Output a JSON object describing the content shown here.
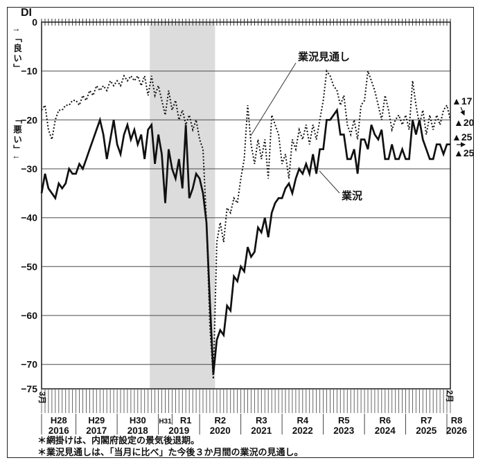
{
  "figure": {
    "di_label": "DI",
    "axis_good": "↑「良い」",
    "axis_bad": "「悪い」↓",
    "first_month_label": "3月",
    "last_month_label": "2月",
    "footnote_1": "＊網掛けは、内閣府設定の景気後退期。",
    "footnote_2": "＊業況見通しは、「当月に比べ」た今後３か月間の業況の見通し。"
  },
  "chart_data": {
    "type": "line",
    "title": "",
    "xlabel": "",
    "ylabel": "DI",
    "ylim": [
      -75,
      0
    ],
    "yticks": [
      0,
      -10,
      -20,
      -30,
      -40,
      -50,
      -60,
      -70,
      -75
    ],
    "grid": true,
    "x_months": {
      "start": "2016-03",
      "end": "2026-02",
      "count": 120
    },
    "years": [
      {
        "era": "H28",
        "year": "2016"
      },
      {
        "era": "H29",
        "year": "2017"
      },
      {
        "era": "H30",
        "year": "2018"
      },
      {
        "era_pre": "H31",
        "era": "R1",
        "year": "2019"
      },
      {
        "era": "R2",
        "year": "2020"
      },
      {
        "era": "R3",
        "year": "2021"
      },
      {
        "era": "R4",
        "year": "2022"
      },
      {
        "era": "R5",
        "year": "2023"
      },
      {
        "era": "R6",
        "year": "2024"
      },
      {
        "era": "R7",
        "year": "2025"
      },
      {
        "era": "R8",
        "year": "2026"
      }
    ],
    "era_split_month": "2019-05",
    "recession_shading": {
      "from": "2018-11",
      "to": "2020-05",
      "color": "#dcdcdc",
      "note": "内閣府設定の景気後退期"
    },
    "series": [
      {
        "name": "業況",
        "line": "solid",
        "color": "#101010",
        "values": [
          -35,
          -31,
          -34,
          -35,
          -36,
          -33,
          -34,
          -33,
          -30,
          -31,
          -31,
          -29,
          -30,
          -28,
          -26,
          -24,
          -22,
          -20,
          -23,
          -28,
          -24,
          -20,
          -25,
          -27,
          -23,
          -21,
          -24,
          -22,
          -25,
          -23,
          -28,
          -22,
          -21,
          -29,
          -23,
          -27,
          -37,
          -26,
          -30,
          -32,
          -28,
          -34,
          -21,
          -36,
          -34,
          -31,
          -32,
          -35,
          -41,
          -57,
          -72,
          -65,
          -63,
          -64,
          -58,
          -59,
          -52,
          -53,
          -50,
          -51,
          -46,
          -48,
          -47,
          -42,
          -43,
          -40,
          -44,
          -39,
          -37,
          -36,
          -36,
          -34,
          -33,
          -35,
          -32,
          -30,
          -31,
          -29,
          -31,
          -27,
          -31,
          -26,
          -26,
          -20,
          -20,
          -19,
          -18,
          -23,
          -23,
          -28,
          -28,
          -26,
          -31,
          -24,
          -24,
          -26,
          -21,
          -23,
          -24,
          -22,
          -28,
          -28,
          -25,
          -28,
          -28,
          -26,
          -28,
          -28,
          -20,
          -23,
          -20,
          -24,
          -26,
          -28,
          -28,
          -25,
          -25,
          -27,
          -25,
          -25
        ]
      },
      {
        "name": "業況見通し",
        "line": "dotted",
        "color": "#101010",
        "values": [
          -18,
          -17,
          -22,
          -24,
          -20,
          -18,
          -18,
          -17,
          -17,
          -16,
          -16,
          -17,
          -15,
          -16,
          -14,
          -15,
          -13,
          -14,
          -13,
          -14,
          -12,
          -13,
          -12,
          -13,
          -11,
          -12,
          -11,
          -12,
          -11,
          -13,
          -11,
          -15,
          -11,
          -15,
          -13,
          -16,
          -19,
          -14,
          -18,
          -16,
          -20,
          -18,
          -21,
          -19,
          -22,
          -20,
          -24,
          -26,
          -41,
          -62,
          -73,
          -45,
          -41,
          -45,
          -38,
          -39,
          -36,
          -37,
          -32,
          -28,
          -17,
          -25,
          -29,
          -24,
          -28,
          -24,
          -32,
          -19,
          -21,
          -23,
          -29,
          -27,
          -32,
          -24,
          -26,
          -22,
          -24,
          -21,
          -25,
          -21,
          -24,
          -20,
          -16,
          -10,
          -11,
          -13,
          -14,
          -17,
          -15,
          -21,
          -23,
          -20,
          -24,
          -17,
          -16,
          -10,
          -12,
          -14,
          -17,
          -20,
          -15,
          -18,
          -22,
          -20,
          -19,
          -21,
          -19,
          -22,
          -12,
          -17,
          -21,
          -18,
          -23,
          -19,
          -22,
          -19,
          -21,
          -18,
          -17,
          -20
        ]
      }
    ],
    "end_annotations": {
      "outlook": {
        "from": "▲17",
        "to": "▲20"
      },
      "actual": {
        "from": "▲25",
        "to": "▲25"
      }
    }
  }
}
